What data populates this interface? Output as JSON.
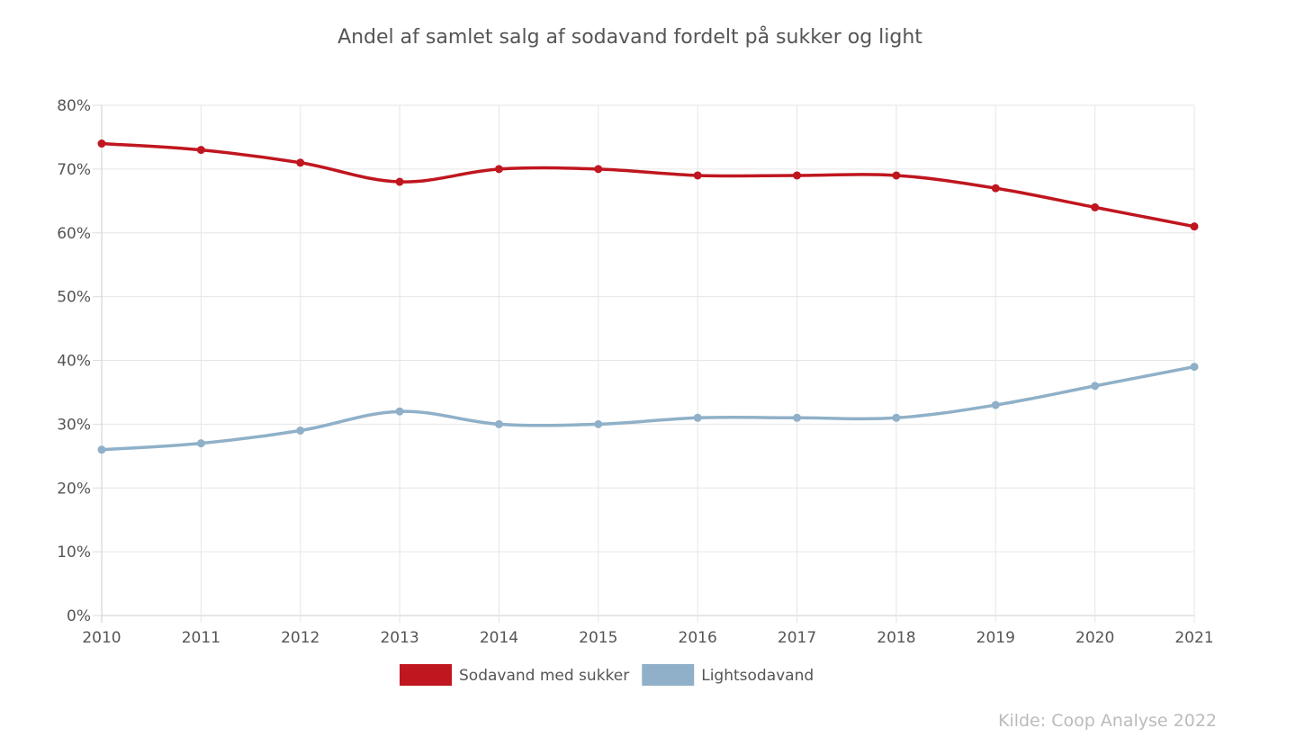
{
  "chart_data": {
    "type": "line",
    "title": "Andel af samlet salg af sodavand fordelt på sukker og light",
    "categories": [
      "2010",
      "2011",
      "2012",
      "2013",
      "2014",
      "2015",
      "2016",
      "2017",
      "2018",
      "2019",
      "2020",
      "2021"
    ],
    "y_ticks": [
      "0%",
      "10%",
      "20%",
      "30%",
      "40%",
      "50%",
      "60%",
      "70%",
      "80%"
    ],
    "ylim": [
      0,
      80
    ],
    "grid": true,
    "legend_position": "bottom",
    "series": [
      {
        "name": "Sodavand med sukker",
        "color": "#c0161f",
        "values": [
          74,
          73,
          71,
          68,
          70,
          70,
          69,
          69,
          69,
          67,
          64,
          61
        ]
      },
      {
        "name": "Lightsodavand",
        "color": "#8fb0c8",
        "values": [
          26,
          27,
          29,
          32,
          30,
          30,
          31,
          31,
          31,
          33,
          36,
          39
        ]
      }
    ],
    "source": "Kilde: Coop Analyse 2022"
  }
}
